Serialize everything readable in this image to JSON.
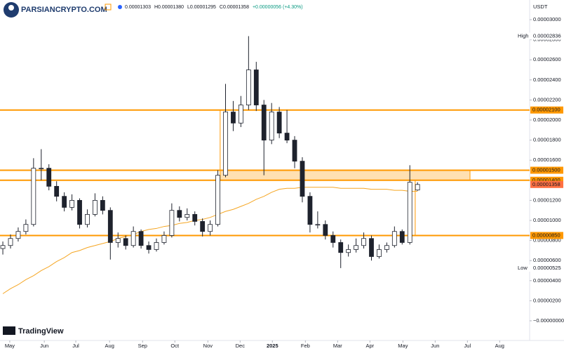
{
  "chart_data": {
    "type": "candlestick",
    "brand": "PARSIANCRYPTO.COM",
    "quote": "USDT",
    "legend": [
      "0.00001303",
      "H0.00001380",
      "L0.00001295",
      "C0.00001358",
      "+0.00000056 (+4.30%)"
    ],
    "footer": "TradingView",
    "candle_color": "#1e222d",
    "ma_color": "#f5a623",
    "level_color": "#ff9800",
    "ohlc": [
      [
        7.2e-06,
        7.9e-06,
        6.6e-06,
        7.5e-06
      ],
      [
        7.5e-06,
        8.6e-06,
        7.2e-06,
        8.2e-06
      ],
      [
        8.2e-06,
        9.3e-06,
        7.9e-06,
        8.9e-06
      ],
      [
        8.9e-06,
        1.01e-05,
        8.6e-06,
        9.6e-06
      ],
      [
        9.6e-06,
        1.62e-05,
        9.4e-06,
        1.52e-05
      ],
      [
        1.52e-05,
        1.71e-05,
        1.4e-05,
        1.52e-05
      ],
      [
        1.52e-05,
        1.56e-05,
        1.3e-05,
        1.34e-05
      ],
      [
        1.34e-05,
        1.39e-05,
        1.19e-05,
        1.24e-05
      ],
      [
        1.24e-05,
        1.28e-05,
        1.09e-05,
        1.13e-05
      ],
      [
        1.13e-05,
        1.26e-05,
        1.1e-05,
        1.2e-05
      ],
      [
        1.2e-05,
        1.22e-05,
        9.2e-06,
        9.6e-06
      ],
      [
        9.6e-06,
        1.11e-05,
        9.3e-06,
        1.06e-05
      ],
      [
        1.06e-05,
        1.27e-05,
        1.04e-05,
        1.2e-05
      ],
      [
        1.2e-05,
        1.24e-05,
        1.06e-05,
        1.1e-05
      ],
      [
        1.1e-05,
        1.13e-05,
        6.1e-06,
        7.8e-06
      ],
      [
        7.8e-06,
        8.8e-06,
        7.3e-06,
        8.2e-06
      ],
      [
        8.2e-06,
        8.5e-06,
        7.1e-06,
        7.5e-06
      ],
      [
        7.5e-06,
        9.4e-06,
        7.3e-06,
        8.9e-06
      ],
      [
        8.9e-06,
        9.1e-06,
        7.2e-06,
        7.5e-06
      ],
      [
        7.5e-06,
        7.9e-06,
        6.7e-06,
        7.1e-06
      ],
      [
        7.1e-06,
        8.2e-06,
        6.9e-06,
        7.8e-06
      ],
      [
        7.8e-06,
        8.9e-06,
        7.6e-06,
        8.5e-06
      ],
      [
        8.5e-06,
        1.17e-05,
        8.3e-06,
        1.1e-05
      ],
      [
        1.1e-05,
        1.14e-05,
        9.9e-06,
        1.03e-05
      ],
      [
        1.03e-05,
        1.12e-05,
        1e-05,
        1.06e-05
      ],
      [
        1.06e-05,
        1.09e-05,
        9.5e-06,
        9.9e-06
      ],
      [
        9.9e-06,
        1.02e-05,
        8.4e-06,
        8.9e-06
      ],
      [
        8.9e-06,
        1e-05,
        8.5e-06,
        9.6e-06
      ],
      [
        9.6e-06,
        1.5e-05,
        9.4e-06,
        1.45e-05
      ],
      [
        1.45e-05,
        2.36e-05,
        1.43e-05,
        2.08e-05
      ],
      [
        2.08e-05,
        2.19e-05,
        1.89e-05,
        1.97e-05
      ],
      [
        1.97e-05,
        2.24e-05,
        1.93e-05,
        2.15e-05
      ],
      [
        2.15e-05,
        2.836e-05,
        2.1e-05,
        2.5e-05
      ],
      [
        2.5e-05,
        2.58e-05,
        2.09e-05,
        2.15e-05
      ],
      [
        2.15e-05,
        2.2e-05,
        1.45e-05,
        1.8e-05
      ],
      [
        1.8e-05,
        2.17e-05,
        1.76e-05,
        2.08e-05
      ],
      [
        2.08e-05,
        2.13e-05,
        1.82e-05,
        1.87e-05
      ],
      [
        1.87e-05,
        2.1e-05,
        1.77e-05,
        1.8e-05
      ],
      [
        1.8e-05,
        1.84e-05,
        1.52e-05,
        1.59e-05
      ],
      [
        1.59e-05,
        1.63e-05,
        1.18e-05,
        1.24e-05
      ],
      [
        1.24e-05,
        1.28e-05,
        8.8e-06,
        9.6e-06
      ],
      [
        9.6e-06,
        1.09e-05,
        9.2e-06,
        9.6e-06
      ],
      [
        9.6e-06,
        1e-05,
        8.1e-06,
        8.5e-06
      ],
      [
        8.5e-06,
        8.9e-06,
        7.3e-06,
        7.8e-06
      ],
      [
        7.8e-06,
        8.1e-06,
        5.25e-06,
        6.8e-06
      ],
      [
        6.8e-06,
        7.6e-06,
        6.4e-06,
        7.1e-06
      ],
      [
        7.1e-06,
        8.2e-06,
        6.8e-06,
        7.5e-06
      ],
      [
        7.5e-06,
        8.8e-06,
        7.2e-06,
        8.2e-06
      ],
      [
        8.2e-06,
        8.5e-06,
        6e-06,
        6.4e-06
      ],
      [
        6.4e-06,
        7.6e-06,
        6.2e-06,
        7.1e-06
      ],
      [
        7.1e-06,
        7.8e-06,
        6.8e-06,
        7.5e-06
      ],
      [
        7.5e-06,
        9.4e-06,
        7.3e-06,
        8.9e-06
      ],
      [
        8.9e-06,
        9.1e-06,
        7.6e-06,
        7.8e-06
      ],
      [
        7.8e-06,
        1.55e-05,
        7.6e-06,
        1.38e-05
      ],
      [
        1.303e-05,
        1.38e-05,
        1.295e-05,
        1.358e-05
      ]
    ],
    "ma": [
      2.7e-06,
      3.2e-06,
      3.6e-06,
      4.1e-06,
      4.5e-06,
      5e-06,
      5.4e-06,
      5.9e-06,
      6.3e-06,
      6.8e-06,
      7e-06,
      7.3e-06,
      7.5e-06,
      7.7e-06,
      7.9e-06,
      8.2e-06,
      8.4e-06,
      8.6e-06,
      8.9e-06,
      9.1e-06,
      9.2e-06,
      9.4e-06,
      9.5e-06,
      9.7e-06,
      9.8e-06,
      1e-05,
      1.01e-05,
      1.03e-05,
      1.06e-05,
      1.09e-05,
      1.11e-05,
      1.14e-05,
      1.17e-05,
      1.21e-05,
      1.24e-05,
      1.28e-05,
      1.31e-05,
      1.32e-05,
      1.32e-05,
      1.33e-05,
      1.33e-05,
      1.33e-05,
      1.33e-05,
      1.33e-05,
      1.32e-05,
      1.32e-05,
      1.32e-05,
      1.32e-05,
      1.31e-05,
      1.31e-05,
      1.31e-05,
      1.3e-05,
      1.3e-05,
      1.29e-05,
      1.29e-05
    ],
    "levels": [
      {
        "value": 2.1e-05,
        "label": "0.00002100"
      },
      {
        "value": 1.5e-05,
        "label": "0.00001500"
      },
      {
        "value": 1.4e-05,
        "label": "0.00001400"
      },
      {
        "value": 8.5e-06,
        "label": "0.00000850"
      }
    ],
    "last_price": {
      "value": 1.358e-05,
      "label": "0.00001358"
    },
    "high_mark": {
      "name": "High",
      "value": 2.836e-05,
      "label": "0.00002836"
    },
    "low_mark": {
      "name": "Low",
      "value": 5.25e-06,
      "label": "0.00000525"
    },
    "xlim": [
      -0.37,
      68.6
    ],
    "ylim": [
      -1.96e-06,
      3.196e-05
    ],
    "xticks": [
      {
        "value": 0.9,
        "label": "May"
      },
      {
        "value": 5.4,
        "label": "Jun"
      },
      {
        "value": 9.5,
        "label": "Jul"
      },
      {
        "value": 13.9,
        "label": "Aug"
      },
      {
        "value": 18.2,
        "label": "Sep"
      },
      {
        "value": 22.4,
        "label": "Oct"
      },
      {
        "value": 26.7,
        "label": "Nov"
      },
      {
        "value": 30.9,
        "label": "Dec"
      },
      {
        "value": 35.1,
        "label": "2025"
      },
      {
        "value": 39.4,
        "label": "Feb"
      },
      {
        "value": 43.6,
        "label": "Mar"
      },
      {
        "value": 47.8,
        "label": "Apr"
      },
      {
        "value": 52.1,
        "label": "May"
      },
      {
        "value": 56.3,
        "label": "Jun"
      },
      {
        "value": 60.5,
        "label": "Jul"
      },
      {
        "value": 64.7,
        "label": "Aug"
      }
    ],
    "yticks": [
      {
        "value": 3e-05,
        "label": "0.00003000"
      },
      {
        "value": 2.8e-05,
        "label": "0.00002800"
      },
      {
        "value": 2.6e-05,
        "label": "0.00002600"
      },
      {
        "value": 2.4e-05,
        "label": "0.00002400"
      },
      {
        "value": 2.2e-05,
        "label": "0.00002200"
      },
      {
        "value": 2e-05,
        "label": "0.00002000"
      },
      {
        "value": 1.8e-05,
        "label": "0.00001800"
      },
      {
        "value": 1.6e-05,
        "label": "0.00001600"
      },
      {
        "value": 1.4e-05,
        "label": "0.00001400"
      },
      {
        "value": 1.2e-05,
        "label": "0.00001200"
      },
      {
        "value": 1e-05,
        "label": "0.00001000"
      },
      {
        "value": 8e-06,
        "label": "0.00000800"
      },
      {
        "value": 6e-06,
        "label": "0.00000600"
      },
      {
        "value": 4e-06,
        "label": "0.00000400"
      },
      {
        "value": 2e-06,
        "label": "0.00000200"
      },
      {
        "value": 0,
        "label": "−0.00000000"
      }
    ]
  }
}
